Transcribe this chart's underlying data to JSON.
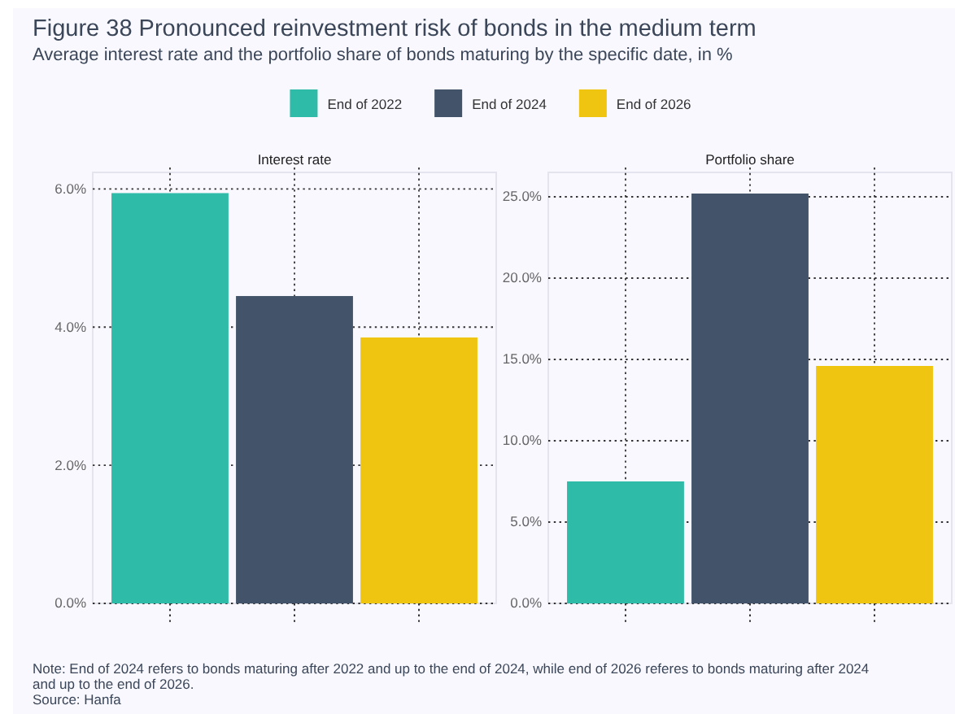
{
  "chart_data": [
    {
      "type": "bar",
      "title": "Figure 38 Pronounced reinvestment risk of bonds in the medium term",
      "subtitle": "Average interest rate and the portfolio share of bonds maturing by the specific date, in %",
      "xlabel": "Interest rate",
      "categories": [
        null,
        null,
        null
      ],
      "stacked": true,
      "series": [
        {
          "name": "End of 2022",
          "color": "#2ebba7",
          "values": [
            5.94,
            null,
            null
          ]
        },
        {
          "name": "End of 2024",
          "color": "#435369",
          "values": [
            null,
            4.45,
            null
          ]
        },
        {
          "name": "End of 2026",
          "color": "#f0c511",
          "values": [
            null,
            null,
            3.85
          ]
        }
      ],
      "ylim": [
        0,
        6.24
      ],
      "yticks": [
        {
          "value": 0,
          "label": "0.0%"
        },
        {
          "value": 2,
          "label": "2.0%"
        },
        {
          "value": 4,
          "label": "4.0%"
        },
        {
          "value": 6,
          "label": "6.0%"
        }
      ],
      "grid": true,
      "legend": "top",
      "annotations": [
        "Note: End of 2024 refers to bonds maturing after 2022 and up to the end of 2024, while end of 2026 referes to bonds maturing after 2024 and up to the end of 2026.",
        "Source: Hanfa"
      ]
    },
    {
      "type": "bar",
      "xlabel": "Portfolio share",
      "categories": [
        null,
        null,
        null
      ],
      "stacked": true,
      "series": [
        {
          "color": "#2ebba7",
          "values": [
            7.5,
            null,
            null
          ]
        },
        {
          "color": "#435369",
          "values": [
            null,
            25.2,
            null
          ]
        },
        {
          "color": "#f0c511",
          "values": [
            null,
            null,
            14.6
          ]
        }
      ],
      "ylim": [
        0,
        26.5
      ],
      "yticks": [
        {
          "value": 0,
          "label": "0.0%"
        },
        {
          "value": 5,
          "label": "5.0%"
        },
        {
          "value": 10,
          "label": "10.0%"
        },
        {
          "value": 15,
          "label": "15.0%"
        },
        {
          "value": 20,
          "label": "20.0%"
        },
        {
          "value": 25,
          "label": "25.0%"
        }
      ],
      "grid": true
    }
  ]
}
